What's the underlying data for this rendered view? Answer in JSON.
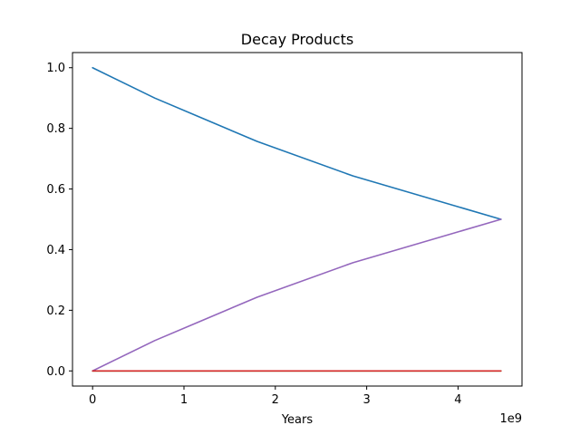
{
  "chart_data": {
    "type": "line",
    "title": "Decay Products",
    "xlabel": "Years",
    "ylabel": "",
    "x_offset_label": "1e9",
    "xlim": [
      -0.22,
      4.7
    ],
    "ylim": [
      -0.05,
      1.05
    ],
    "x_ticks": [
      0,
      1,
      2,
      3,
      4
    ],
    "x_tick_labels": [
      "0",
      "1",
      "2",
      "3",
      "4"
    ],
    "y_ticks": [
      0.0,
      0.2,
      0.4,
      0.6,
      0.8,
      1.0
    ],
    "y_tick_labels": [
      "0.0",
      "0.2",
      "0.4",
      "0.6",
      "0.8",
      "1.0"
    ],
    "grid": false,
    "x": [
      0,
      0.68,
      1.15,
      1.8,
      2.85,
      4.47
    ],
    "series": [
      {
        "color": "#1f77b4",
        "values": [
          1.0,
          0.9,
          0.84,
          0.757,
          0.643,
          0.5
        ]
      },
      {
        "color": "#9467bd",
        "values": [
          0.0,
          0.1,
          0.16,
          0.243,
          0.357,
          0.5
        ]
      },
      {
        "color": "#2ca02c",
        "values": [
          0,
          0,
          0,
          0,
          0,
          0
        ]
      },
      {
        "color": "#d62728",
        "values": [
          0,
          0,
          0,
          0,
          0,
          0
        ]
      }
    ]
  }
}
